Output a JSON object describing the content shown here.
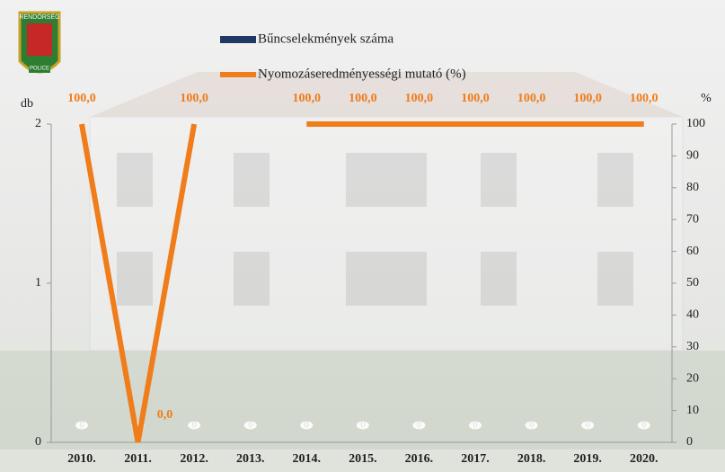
{
  "logo": {
    "top": "RENDŐRSÉG",
    "bottom": "POLICE"
  },
  "chart_data": {
    "type": "bar-line",
    "categories": [
      "2010.",
      "2011.",
      "2012.",
      "2013.",
      "2014.",
      "2015.",
      "2016.",
      "2017.",
      "2018.",
      "2019.",
      "2020."
    ],
    "series": [
      {
        "name": "Bűncselekmények száma",
        "type": "bar",
        "color": "#1f3864",
        "values": [
          0,
          0,
          0,
          0,
          0,
          0,
          0,
          0,
          0,
          0,
          0
        ]
      },
      {
        "name": "Nyomozáseredményességi mutató (%)",
        "type": "line",
        "axis": "y2",
        "color": "#f07c1a",
        "values": [
          100,
          0,
          100,
          null,
          100,
          100,
          100,
          100,
          100,
          100,
          100
        ],
        "value_labels": [
          "100,0",
          "0,0",
          "100,0",
          null,
          "100,0",
          "100,0",
          "100,0",
          "100,0",
          "100,0",
          "100,0",
          "100,0"
        ]
      }
    ],
    "y_label": "db",
    "y2_label": "%",
    "ylim": [
      0,
      2
    ],
    "yticks": [
      0,
      1,
      2
    ],
    "y2lim": [
      0,
      100
    ],
    "y2ticks": [
      0,
      10,
      20,
      30,
      40,
      50,
      60,
      70,
      80,
      90,
      100
    ]
  }
}
